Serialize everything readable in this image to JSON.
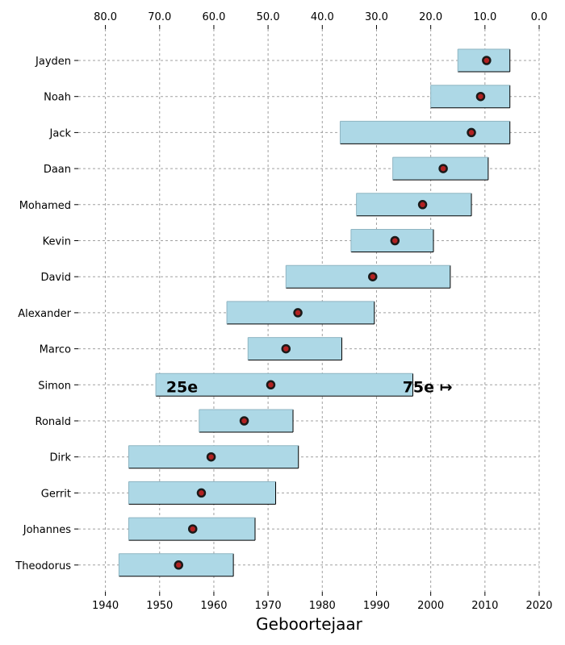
{
  "chart_data": {
    "type": "bar",
    "orientation": "horizontal",
    "xlabel": "Geboortejaar",
    "xlim": [
      1935,
      2020
    ],
    "bottom_ticks": [
      "1940",
      "1950",
      "1960",
      "1970",
      "1980",
      "1990",
      "2000",
      "2010",
      "2020"
    ],
    "top_ticks": [
      "80.0",
      "70.0",
      "60.0",
      "50.0",
      "40.0",
      "30.0",
      "20.0",
      "10.0",
      "0.0"
    ],
    "top_tick_values": [
      80,
      70,
      60,
      50,
      40,
      30,
      20,
      10,
      0
    ],
    "top_axis_reference_year": 2020,
    "grid": true,
    "categories": [
      "Jayden",
      "Noah",
      "Jack",
      "Daan",
      "Mohamed",
      "Kevin",
      "David",
      "Alexander",
      "Marco",
      "Simon",
      "Ronald",
      "Dirk",
      "Gerrit",
      "Johannes",
      "Theodorus"
    ],
    "series": [
      {
        "name": "range_start",
        "values": [
          2005.0,
          2000.0,
          1983.3,
          1993.0,
          1986.3,
          1985.3,
          1973.3,
          1962.4,
          1966.3,
          1949.3,
          1957.3,
          1944.3,
          1944.3,
          1944.3,
          1942.5
        ]
      },
      {
        "name": "range_end",
        "values": [
          2014.6,
          2014.6,
          2014.6,
          2010.6,
          2007.5,
          2000.5,
          2003.6,
          1989.6,
          1983.6,
          1996.7,
          1974.6,
          1975.6,
          1971.4,
          1967.6,
          1963.6
        ]
      },
      {
        "name": "marker",
        "values": [
          2010.3,
          2009.2,
          2007.5,
          2002.3,
          1998.5,
          1993.4,
          1989.3,
          1975.5,
          1973.3,
          1970.5,
          1965.6,
          1959.5,
          1957.7,
          1956.1,
          1953.5
        ]
      }
    ],
    "annotations": [
      {
        "category": "Simon",
        "text": "25e",
        "x": 1951.2
      },
      {
        "category": "Simon",
        "text": "75e ↦",
        "x": 1994.8
      }
    ]
  }
}
